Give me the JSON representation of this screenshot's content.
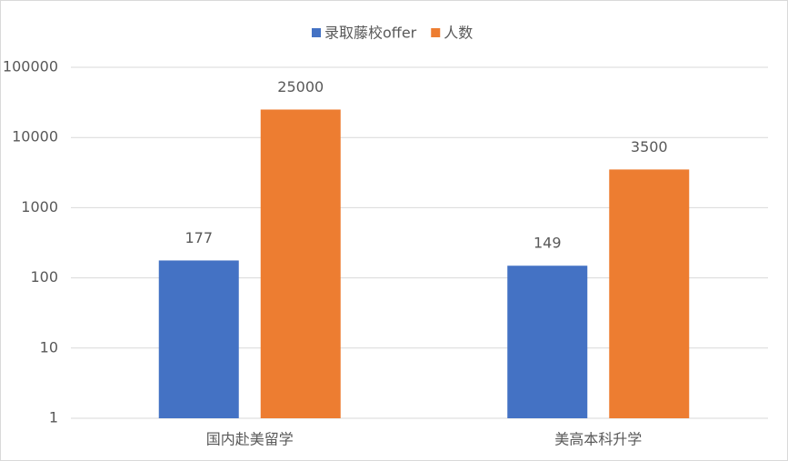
{
  "chart_data": {
    "type": "bar",
    "categories": [
      "国内赴美留学",
      "美高本科升学"
    ],
    "series": [
      {
        "name": "录取藤校offer",
        "color": "#4472c4",
        "values": [
          177,
          149
        ]
      },
      {
        "name": "人数",
        "color": "#ed7d31",
        "values": [
          25000,
          3500
        ]
      }
    ],
    "yscale": "log",
    "ylim": [
      1,
      100000
    ],
    "yticks": [
      1,
      10,
      100,
      1000,
      10000,
      100000
    ],
    "grid": true,
    "legend": "top",
    "data_labels": true
  }
}
